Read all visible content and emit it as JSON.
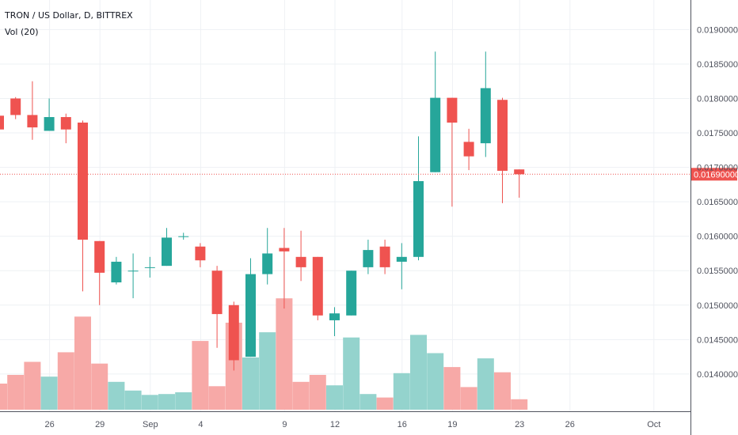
{
  "legend": {
    "symbol": "TRON / US Dollar, D, BITTREX",
    "volume": "Vol (20)"
  },
  "colors": {
    "up": "#26a69a",
    "down": "#ef5350",
    "up_vol": "#94d3cd",
    "down_vol": "#f7a9a7",
    "grid": "#eef1f4",
    "axis": "#50535e",
    "last_price": "#ef5350"
  },
  "chart_data": {
    "type": "candlestick",
    "price_axis": {
      "min": 0.0137,
      "max": 0.0192,
      "ticks": [
        "0.01400000",
        "0.01450000",
        "0.01500000",
        "0.01550000",
        "0.01600000",
        "0.01650000",
        "0.01700000",
        "0.01750000",
        "0.01800000",
        "0.01850000",
        "0.01900000"
      ]
    },
    "x_ticks": [
      "26",
      "29",
      "Sep",
      "4",
      "9",
      "12",
      "16",
      "19",
      "23",
      "26",
      "Oct"
    ],
    "last_price": {
      "value": 0.0169,
      "label": "0.01690000"
    },
    "candles": [
      {
        "date": "Aug 23",
        "o": 0.01775,
        "h": 0.0178,
        "l": 0.01735,
        "c": 0.01755,
        "vol": 0.3
      },
      {
        "date": "Aug 24",
        "o": 0.018,
        "h": 0.01802,
        "l": 0.0177,
        "c": 0.01776,
        "vol": 0.4
      },
      {
        "date": "Aug 25",
        "o": 0.01776,
        "h": 0.01825,
        "l": 0.0174,
        "c": 0.01758,
        "vol": 0.55
      },
      {
        "date": "Aug 26",
        "o": 0.01753,
        "h": 0.018,
        "l": 0.01753,
        "c": 0.01773,
        "vol": 0.38
      },
      {
        "date": "Aug 27",
        "o": 0.01773,
        "h": 0.01778,
        "l": 0.01735,
        "c": 0.01755,
        "vol": 0.66
      },
      {
        "date": "Aug 28",
        "o": 0.01765,
        "h": 0.01768,
        "l": 0.0152,
        "c": 0.01595,
        "vol": 1.07
      },
      {
        "date": "Aug 29",
        "o": 0.01593,
        "h": 0.01593,
        "l": 0.015,
        "c": 0.01547,
        "vol": 0.53
      },
      {
        "date": "Aug 30",
        "o": 0.01533,
        "h": 0.0157,
        "l": 0.0153,
        "c": 0.01563,
        "vol": 0.32
      },
      {
        "date": "Aug 31",
        "o": 0.01549,
        "h": 0.01575,
        "l": 0.0151,
        "c": 0.0155,
        "vol": 0.22
      },
      {
        "date": "Sep 1",
        "o": 0.01555,
        "h": 0.0157,
        "l": 0.0154,
        "c": 0.01555,
        "vol": 0.17
      },
      {
        "date": "Sep 2",
        "o": 0.01557,
        "h": 0.01612,
        "l": 0.01557,
        "c": 0.01598,
        "vol": 0.18
      },
      {
        "date": "Sep 3",
        "o": 0.016,
        "h": 0.01605,
        "l": 0.01595,
        "c": 0.016,
        "vol": 0.2
      },
      {
        "date": "Sep 4",
        "o": 0.01585,
        "h": 0.0159,
        "l": 0.01555,
        "c": 0.01565,
        "vol": 0.79
      },
      {
        "date": "Sep 5",
        "o": 0.0155,
        "h": 0.01557,
        "l": 0.01438,
        "c": 0.01487,
        "vol": 0.27
      },
      {
        "date": "Sep 6",
        "o": 0.015,
        "h": 0.01505,
        "l": 0.01405,
        "c": 0.0142,
        "vol": 1.0
      },
      {
        "date": "Sep 7",
        "o": 0.01425,
        "h": 0.01568,
        "l": 0.01425,
        "c": 0.01545,
        "vol": 0.6
      },
      {
        "date": "Sep 8",
        "o": 0.01545,
        "h": 0.01612,
        "l": 0.0153,
        "c": 0.01575,
        "vol": 0.89
      },
      {
        "date": "Sep 9",
        "o": 0.01583,
        "h": 0.01612,
        "l": 0.01495,
        "c": 0.01578,
        "vol": 1.28
      },
      {
        "date": "Sep 10",
        "o": 0.0157,
        "h": 0.01608,
        "l": 0.01535,
        "c": 0.01555,
        "vol": 0.32
      },
      {
        "date": "Sep 11",
        "o": 0.0157,
        "h": 0.0157,
        "l": 0.01478,
        "c": 0.01485,
        "vol": 0.4
      },
      {
        "date": "Sep 12",
        "o": 0.01478,
        "h": 0.01497,
        "l": 0.01455,
        "c": 0.01488,
        "vol": 0.28
      },
      {
        "date": "Sep 13",
        "o": 0.01485,
        "h": 0.0155,
        "l": 0.01485,
        "c": 0.0155,
        "vol": 0.83
      },
      {
        "date": "Sep 14",
        "o": 0.01555,
        "h": 0.01595,
        "l": 0.01545,
        "c": 0.0158,
        "vol": 0.18
      },
      {
        "date": "Sep 15",
        "o": 0.01585,
        "h": 0.01595,
        "l": 0.01545,
        "c": 0.01555,
        "vol": 0.14
      },
      {
        "date": "Sep 16",
        "o": 0.01563,
        "h": 0.0159,
        "l": 0.01523,
        "c": 0.0157,
        "vol": 0.42
      },
      {
        "date": "Sep 17",
        "o": 0.0157,
        "h": 0.01745,
        "l": 0.01565,
        "c": 0.0168,
        "vol": 0.86
      },
      {
        "date": "Sep 18",
        "o": 0.01693,
        "h": 0.01868,
        "l": 0.01693,
        "c": 0.01801,
        "vol": 0.65
      },
      {
        "date": "Sep 19",
        "o": 0.01801,
        "h": 0.01801,
        "l": 0.01643,
        "c": 0.01765,
        "vol": 0.49
      },
      {
        "date": "Sep 20",
        "o": 0.01737,
        "h": 0.01756,
        "l": 0.01696,
        "c": 0.01716,
        "vol": 0.26
      },
      {
        "date": "Sep 21",
        "o": 0.01735,
        "h": 0.01868,
        "l": 0.01715,
        "c": 0.01815,
        "vol": 0.59
      },
      {
        "date": "Sep 22",
        "o": 0.01798,
        "h": 0.01801,
        "l": 0.01648,
        "c": 0.01695,
        "vol": 0.43
      },
      {
        "date": "Sep 23",
        "o": 0.01697,
        "h": 0.01697,
        "l": 0.01656,
        "c": 0.0169,
        "vol": 0.12
      }
    ]
  }
}
